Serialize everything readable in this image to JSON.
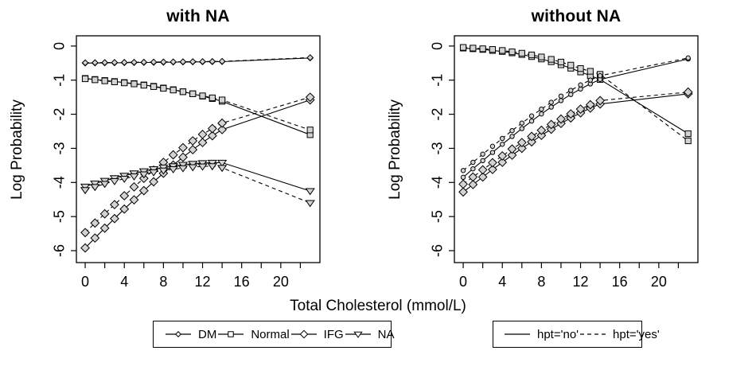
{
  "figure": {
    "x_axis_label": "Total Cholesterol (mmol/L)",
    "y_axis_label": "Log Probability"
  },
  "colors": {
    "line": "#000000",
    "marker_fill": "#d3d3d3",
    "legend_marker_fill": "#ffffff",
    "marker_stroke": "#000000",
    "text": "#000000",
    "background": "#ffffff"
  },
  "chart_data": [
    {
      "id": "with-na",
      "type": "line",
      "title": "with NA",
      "xlabel": "Total Cholesterol (mmol/L)",
      "ylabel": "Log Probability",
      "xlim": [
        -0.9,
        24.0
      ],
      "ylim": [
        -6.35,
        0.3
      ],
      "x_ticks": [
        0,
        2,
        4,
        6,
        8,
        10,
        12,
        14,
        16,
        18,
        20,
        22
      ],
      "x_tick_label_values": [
        0,
        4,
        8,
        12,
        16,
        20
      ],
      "y_ticks": [
        0,
        -1,
        -2,
        -3,
        -4,
        -5,
        -6
      ],
      "grid": false,
      "x": [
        0,
        1,
        2,
        3,
        4,
        5,
        6,
        7,
        8,
        9,
        10,
        11,
        12,
        13,
        14,
        23
      ],
      "series": [
        {
          "name": "DM hpt='no'",
          "group": "DM",
          "style": "solid",
          "marker": "diamond-small",
          "values": [
            -0.5,
            -0.497,
            -0.494,
            -0.491,
            -0.488,
            -0.485,
            -0.482,
            -0.479,
            -0.476,
            -0.473,
            -0.47,
            -0.467,
            -0.464,
            -0.461,
            -0.458,
            -0.35
          ]
        },
        {
          "name": "DM hpt='yes'",
          "group": "DM",
          "style": "dashed",
          "marker": "diamond-small",
          "values": [
            -0.49,
            -0.487,
            -0.484,
            -0.481,
            -0.478,
            -0.475,
            -0.472,
            -0.469,
            -0.466,
            -0.463,
            -0.46,
            -0.457,
            -0.454,
            -0.451,
            -0.448,
            -0.34
          ]
        },
        {
          "name": "Normal hpt='no'",
          "group": "Normal",
          "style": "solid",
          "marker": "square",
          "values": [
            -0.95,
            -0.98,
            -1.01,
            -1.04,
            -1.07,
            -1.1,
            -1.14,
            -1.18,
            -1.23,
            -1.28,
            -1.34,
            -1.4,
            -1.47,
            -1.54,
            -1.62,
            -2.6
          ]
        },
        {
          "name": "Normal hpt='yes'",
          "group": "Normal",
          "style": "dashed",
          "marker": "square",
          "values": [
            -0.96,
            -0.99,
            -1.02,
            -1.05,
            -1.08,
            -1.11,
            -1.15,
            -1.19,
            -1.24,
            -1.29,
            -1.34,
            -1.4,
            -1.46,
            -1.52,
            -1.58,
            -2.46
          ]
        },
        {
          "name": "IFG hpt='no'",
          "group": "IFG",
          "style": "solid",
          "marker": "diamond",
          "values": [
            -5.92,
            -5.63,
            -5.34,
            -5.06,
            -4.78,
            -4.51,
            -4.24,
            -3.98,
            -3.73,
            -3.49,
            -3.26,
            -3.04,
            -2.83,
            -2.63,
            -2.45,
            -1.58
          ]
        },
        {
          "name": "IFG hpt='yes'",
          "group": "IFG",
          "style": "dashed",
          "marker": "diamond",
          "values": [
            -5.47,
            -5.19,
            -4.92,
            -4.65,
            -4.39,
            -4.13,
            -3.88,
            -3.64,
            -3.41,
            -3.19,
            -2.98,
            -2.78,
            -2.59,
            -2.42,
            -2.26,
            -1.5
          ]
        },
        {
          "name": "NA hpt='no'",
          "group": "NA",
          "style": "solid",
          "marker": "triangle-down",
          "values": [
            -4.12,
            -4.03,
            -3.95,
            -3.87,
            -3.8,
            -3.73,
            -3.67,
            -3.61,
            -3.56,
            -3.52,
            -3.48,
            -3.45,
            -3.43,
            -3.42,
            -3.42,
            -4.25
          ]
        },
        {
          "name": "NA hpt='yes'",
          "group": "NA",
          "style": "dashed",
          "marker": "triangle-down",
          "values": [
            -4.22,
            -4.13,
            -4.04,
            -3.96,
            -3.89,
            -3.82,
            -3.76,
            -3.7,
            -3.65,
            -3.61,
            -3.58,
            -3.55,
            -3.53,
            -3.52,
            -3.57,
            -4.6
          ]
        }
      ]
    },
    {
      "id": "without-na",
      "type": "line",
      "title": "without NA",
      "xlabel": "Total Cholesterol (mmol/L)",
      "ylabel": "Log Probability",
      "xlim": [
        -0.9,
        24.0
      ],
      "ylim": [
        -6.35,
        0.3
      ],
      "x_ticks": [
        0,
        2,
        4,
        6,
        8,
        10,
        12,
        14,
        16,
        18,
        20,
        22
      ],
      "x_tick_label_values": [
        0,
        4,
        8,
        12,
        16,
        20
      ],
      "y_ticks": [
        0,
        -1,
        -2,
        -3,
        -4,
        -5,
        -6
      ],
      "grid": false,
      "x": [
        0,
        1,
        2,
        3,
        4,
        5,
        6,
        7,
        8,
        9,
        10,
        11,
        12,
        13,
        14,
        23
      ],
      "series": [
        {
          "name": "Normal hpt='no'",
          "group": "Normal",
          "style": "solid",
          "marker": "square",
          "values": [
            -0.06,
            -0.08,
            -0.1,
            -0.13,
            -0.16,
            -0.2,
            -0.25,
            -0.31,
            -0.38,
            -0.46,
            -0.55,
            -0.65,
            -0.76,
            -0.87,
            -0.98,
            -2.57
          ]
        },
        {
          "name": "Normal hpt='yes'",
          "group": "Normal",
          "style": "dashed",
          "marker": "square",
          "values": [
            -0.04,
            -0.06,
            -0.08,
            -0.1,
            -0.13,
            -0.17,
            -0.21,
            -0.26,
            -0.32,
            -0.39,
            -0.47,
            -0.56,
            -0.66,
            -0.74,
            -0.83,
            -2.78
          ]
        },
        {
          "name": "DM hpt='no'",
          "group": "DM",
          "style": "solid",
          "marker": "circle-small",
          "values": [
            -3.85,
            -3.6,
            -3.36,
            -3.12,
            -2.88,
            -2.65,
            -2.42,
            -2.2,
            -1.99,
            -1.79,
            -1.6,
            -1.42,
            -1.26,
            -1.11,
            -0.98,
            -0.38
          ]
        },
        {
          "name": "DM hpt='yes'",
          "group": "DM",
          "style": "dashed",
          "marker": "circle-small",
          "values": [
            -3.65,
            -3.41,
            -3.17,
            -2.94,
            -2.71,
            -2.48,
            -2.26,
            -2.05,
            -1.85,
            -1.65,
            -1.47,
            -1.3,
            -1.14,
            -1.0,
            -0.87,
            -0.35
          ]
        },
        {
          "name": "IFG hpt='no'",
          "group": "IFG",
          "style": "solid",
          "marker": "diamond",
          "values": [
            -4.28,
            -4.06,
            -3.84,
            -3.62,
            -3.41,
            -3.2,
            -3.0,
            -2.81,
            -2.62,
            -2.44,
            -2.27,
            -2.11,
            -1.96,
            -1.82,
            -1.7,
            -1.4
          ]
        },
        {
          "name": "IFG hpt='yes'",
          "group": "IFG",
          "style": "dashed",
          "marker": "diamond",
          "values": [
            -4.05,
            -3.84,
            -3.63,
            -3.42,
            -3.22,
            -3.02,
            -2.83,
            -2.65,
            -2.47,
            -2.3,
            -2.14,
            -1.99,
            -1.85,
            -1.72,
            -1.6,
            -1.35
          ]
        }
      ]
    }
  ],
  "legends": [
    {
      "id": "outcome-groups",
      "items": [
        {
          "label": "DM",
          "marker": "diamond-small",
          "line": "solid"
        },
        {
          "label": "Normal",
          "marker": "square",
          "line": "solid"
        },
        {
          "label": "IFG",
          "marker": "diamond",
          "line": "solid"
        },
        {
          "label": "NA",
          "marker": "triangle-down",
          "line": "solid"
        }
      ]
    },
    {
      "id": "hpt",
      "items": [
        {
          "label": "hpt='no'",
          "marker": "none",
          "line": "solid"
        },
        {
          "label": "hpt='yes'",
          "marker": "none",
          "line": "dashed"
        }
      ]
    }
  ]
}
